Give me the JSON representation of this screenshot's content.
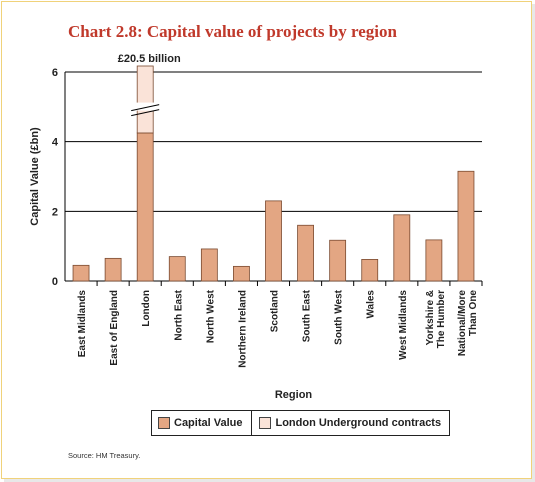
{
  "title": "Chart 2.8: Capital value of projects by region",
  "source": "Source: HM Treasury.",
  "colors": {
    "capital": "#e3a683",
    "underground": "#fae3d8",
    "stroke": "#7a4a30",
    "title": "#c0392b"
  },
  "chart_data": {
    "type": "bar",
    "title": "Chart 2.8: Capital value of projects by region",
    "xlabel": "Region",
    "ylabel": "Capital Value (£bn)",
    "ylim": [
      0,
      6
    ],
    "yticks": [
      0,
      2,
      4,
      6
    ],
    "grid": true,
    "legend_position": "bottom",
    "axis_break": true,
    "annotation": "£20.5 billion",
    "categories": [
      "East Midlands",
      "East of England",
      "London",
      "North East",
      "North West",
      "Northern Ireland",
      "Scotland",
      "South East",
      "South West",
      "Wales",
      "West Midlands",
      "Yorkshire &\nThe Humber",
      "National/More\nThan One"
    ],
    "series": [
      {
        "name": "Capital Value",
        "values": [
          0.45,
          0.65,
          4.25,
          0.7,
          0.92,
          0.42,
          2.3,
          1.6,
          1.17,
          0.62,
          1.9,
          1.18,
          3.15
        ]
      },
      {
        "name": "London Underground contracts",
        "values": [
          0,
          0,
          16.25,
          0,
          0,
          0,
          0,
          0,
          0,
          0,
          0,
          0,
          0
        ]
      }
    ]
  }
}
